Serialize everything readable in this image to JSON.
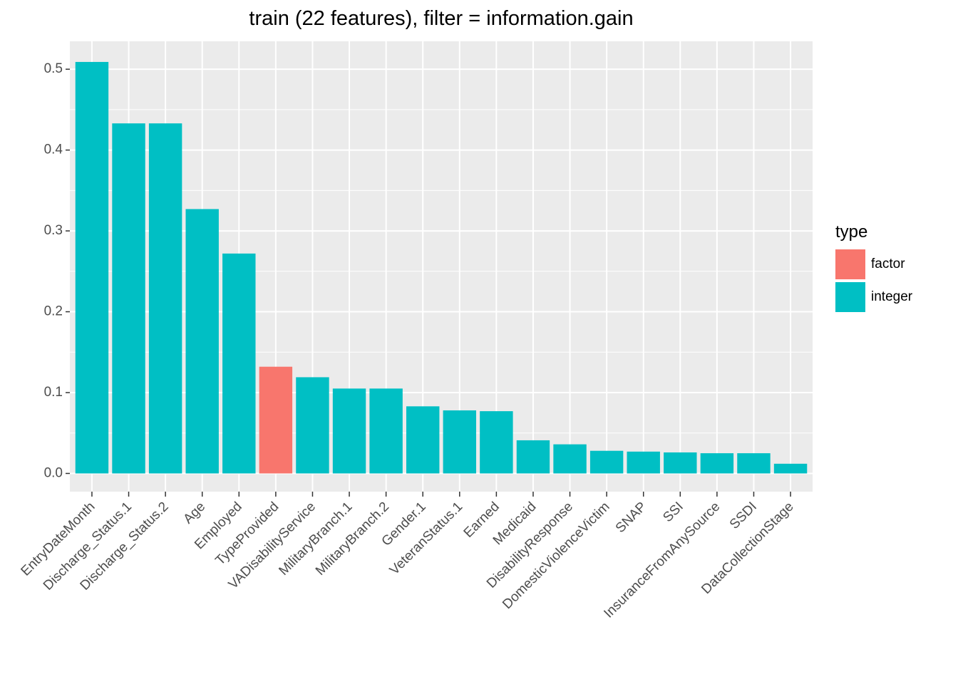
{
  "chart_data": {
    "type": "bar",
    "title": "train (22 features), filter = information.gain",
    "xlabel": "",
    "ylabel": "",
    "categories": [
      "EntryDateMonth",
      "Discharge_Status.1",
      "Discharge_Status.2",
      "Age",
      "Employed",
      "TypeProvided",
      "VADisabilityService",
      "MilitaryBranch.1",
      "MilitaryBranch.2",
      "Gender.1",
      "VeteranStatus.1",
      "Earned",
      "Medicaid",
      "DisabilityResponse",
      "DomesticViolenceVictim",
      "SNAP",
      "SSI",
      "InsuranceFromAnySource",
      "SSDI",
      "DataCollectionStage"
    ],
    "values": [
      0.509,
      0.433,
      0.433,
      0.327,
      0.272,
      0.132,
      0.119,
      0.105,
      0.105,
      0.083,
      0.078,
      0.077,
      0.041,
      0.036,
      0.028,
      0.027,
      0.026,
      0.025,
      0.025,
      0.012
    ],
    "types": [
      "integer",
      "integer",
      "integer",
      "integer",
      "integer",
      "factor",
      "integer",
      "integer",
      "integer",
      "integer",
      "integer",
      "integer",
      "integer",
      "integer",
      "integer",
      "integer",
      "integer",
      "integer",
      "integer",
      "integer"
    ],
    "ylim": [
      -0.0225,
      0.5345
    ],
    "yticks": [
      0.0,
      0.1,
      0.2,
      0.3,
      0.4,
      0.5
    ],
    "ytick_labels": [
      "0.0",
      "0.1",
      "0.2",
      "0.3",
      "0.4",
      "0.5"
    ],
    "grid": true,
    "legend": {
      "title": "type",
      "placement": "right",
      "items": [
        {
          "label": "factor",
          "color": "#F8766D"
        },
        {
          "label": "integer",
          "color": "#00BFC4"
        }
      ]
    },
    "panel_background": "#EBEBEB",
    "grid_color": "#FFFFFF"
  }
}
